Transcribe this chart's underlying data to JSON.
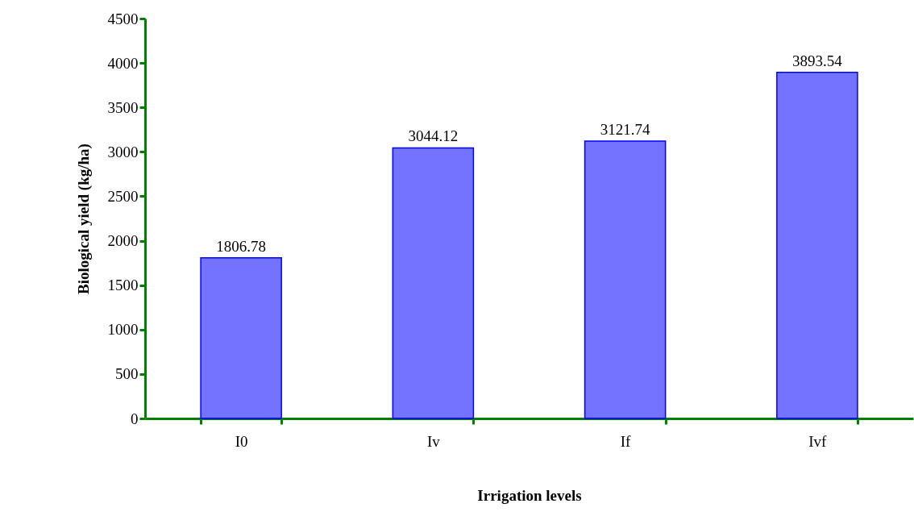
{
  "chart_data": {
    "type": "bar",
    "xlabel": "Irrigation levels",
    "ylabel": "Biological yield (kg/ha)",
    "categories": [
      "I0",
      "Iv",
      "If",
      "Ivf"
    ],
    "values": [
      1806.78,
      3044.12,
      3121.74,
      3893.54
    ],
    "color": "#0000ff",
    "ylim": [
      0,
      4500
    ],
    "yticks": [
      0,
      500,
      1000,
      1500,
      2000,
      2500,
      3000,
      3500,
      4000,
      4500
    ],
    "grid": false,
    "data_labels": true
  }
}
